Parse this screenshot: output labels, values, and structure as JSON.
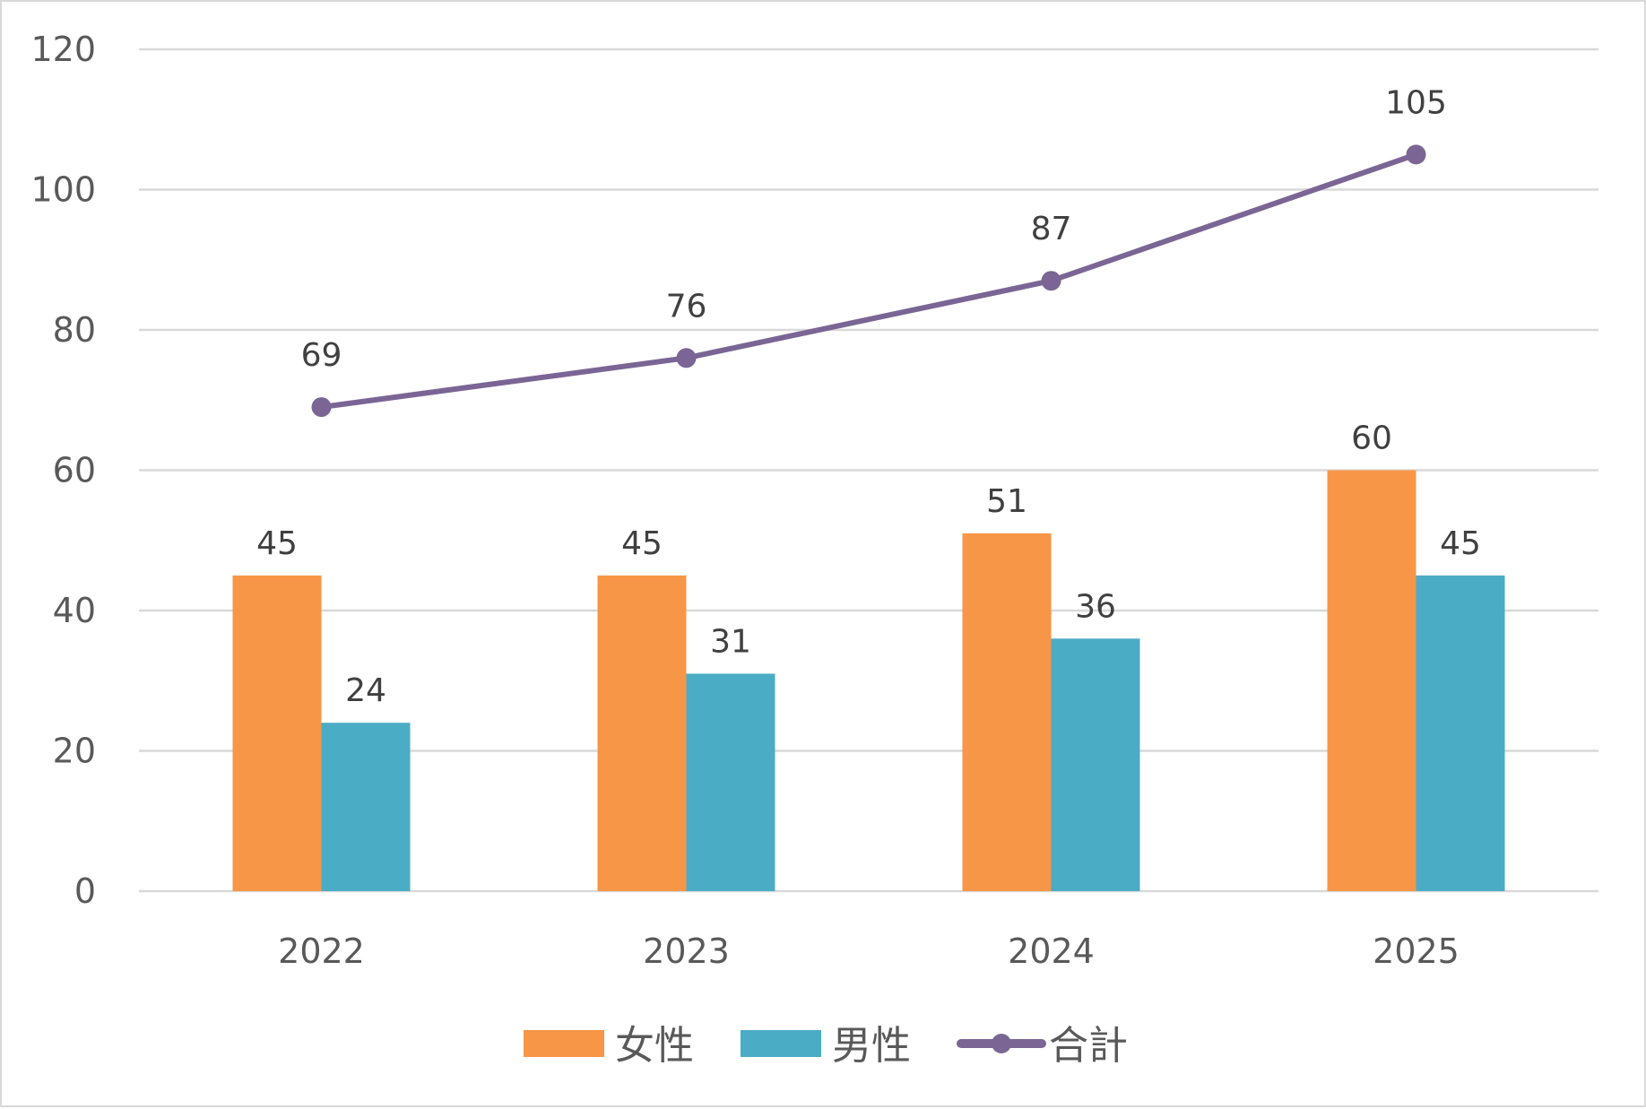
{
  "chart_data": {
    "type": "bar",
    "title": "",
    "xlabel": "",
    "ylabel": "",
    "categories": [
      "2022",
      "2023",
      "2024",
      "2025"
    ],
    "ylim": [
      0,
      120
    ],
    "yticks": [
      0,
      20,
      40,
      60,
      80,
      100,
      120
    ],
    "grid": true,
    "legend_position": "bottom",
    "series": [
      {
        "name": "女性",
        "type": "bar",
        "values": [
          45,
          45,
          51,
          60
        ],
        "color": "#F79646"
      },
      {
        "name": "男性",
        "type": "bar",
        "values": [
          24,
          31,
          36,
          45
        ],
        "color": "#4BACC6"
      },
      {
        "name": "合計",
        "type": "line",
        "values": [
          69,
          76,
          87,
          105
        ],
        "color": "#7A6595"
      }
    ]
  }
}
